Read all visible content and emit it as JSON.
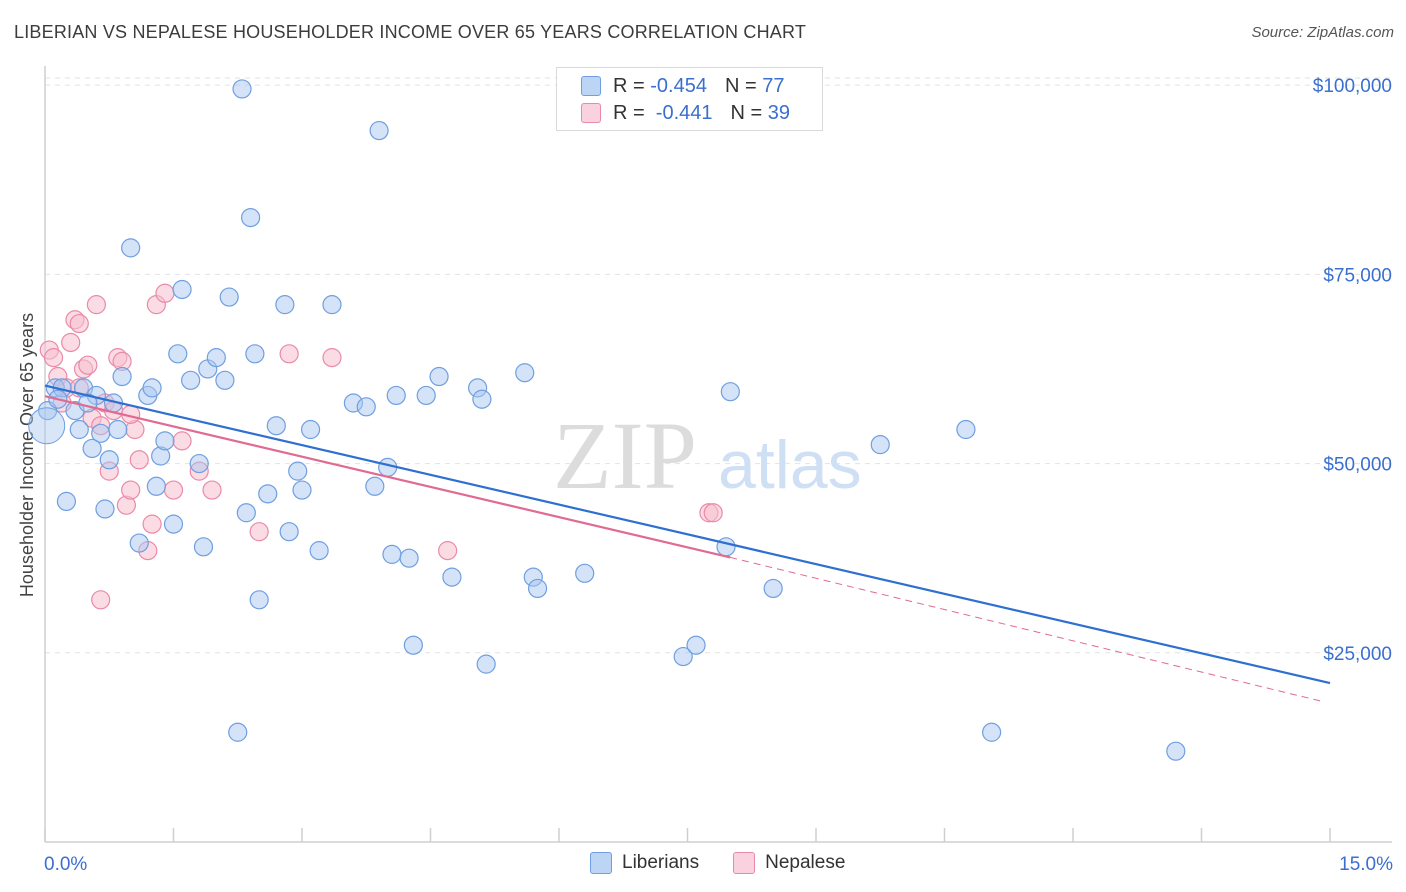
{
  "header": {
    "title": "LIBERIAN VS NEPALESE HOUSEHOLDER INCOME OVER 65 YEARS CORRELATION CHART",
    "source": "Source: ZipAtlas.com"
  },
  "legend": {
    "series1": {
      "r_label": "R =",
      "r_value": "-0.454",
      "n_label": "N =",
      "n_value": "77"
    },
    "series2": {
      "r_label": "R =",
      "r_value": " -0.441",
      "n_label": "N =",
      "n_value": "39"
    }
  },
  "watermark": {
    "zip": "ZIP",
    "atlas": "atlas"
  },
  "colors": {
    "blue_fill": "#a9c8f0",
    "blue_stroke": "#6f9fe0",
    "blue_line": "#2e6fd1",
    "pink_fill": "#f7c0d0",
    "pink_stroke": "#e98aa8",
    "pink_line": "#e06a92",
    "axis_label": "#3a6fd0",
    "grid": "#e2e2e2"
  },
  "chart_data": {
    "type": "scatter",
    "title": "LIBERIAN VS NEPALESE HOUSEHOLDER INCOME OVER 65 YEARS CORRELATION CHART",
    "xlabel": "",
    "ylabel": "Householder Income Over 65 years",
    "xlim": [
      0,
      15
    ],
    "ylim": [
      0,
      102000
    ],
    "x_tick_labels": [
      "0.0%",
      "15.0%"
    ],
    "y_ticks": [
      25000,
      50000,
      75000,
      100000
    ],
    "y_tick_labels": [
      "$25,000",
      "$50,000",
      "$75,000",
      "$100,000"
    ],
    "grid": true,
    "legend_position": "top-center",
    "series": [
      {
        "name": "Liberians",
        "color": "#a9c8f0",
        "r": -0.454,
        "n": 77,
        "trend": {
          "x": [
            0,
            15
          ],
          "y": [
            60300,
            21000
          ]
        },
        "points": [
          [
            0.03,
            57000
          ],
          [
            0.12,
            60000
          ],
          [
            0.2,
            60000
          ],
          [
            0.25,
            45000
          ],
          [
            0.35,
            57000
          ],
          [
            0.4,
            54500
          ],
          [
            0.45,
            60000
          ],
          [
            0.6,
            59000
          ],
          [
            0.65,
            54000
          ],
          [
            0.7,
            44000
          ],
          [
            0.75,
            50500
          ],
          [
            0.8,
            58000
          ],
          [
            0.9,
            61500
          ],
          [
            1.0,
            78500
          ],
          [
            1.1,
            39500
          ],
          [
            1.2,
            59000
          ],
          [
            1.25,
            60000
          ],
          [
            1.3,
            47000
          ],
          [
            1.35,
            51000
          ],
          [
            1.5,
            42000
          ],
          [
            1.55,
            64500
          ],
          [
            1.6,
            73000
          ],
          [
            1.7,
            61000
          ],
          [
            1.8,
            50000
          ],
          [
            1.85,
            39000
          ],
          [
            1.9,
            62500
          ],
          [
            2.0,
            64000
          ],
          [
            2.1,
            61000
          ],
          [
            2.15,
            72000
          ],
          [
            2.25,
            14500
          ],
          [
            2.3,
            99500
          ],
          [
            2.35,
            43500
          ],
          [
            2.4,
            82500
          ],
          [
            2.45,
            64500
          ],
          [
            2.5,
            32000
          ],
          [
            2.6,
            46000
          ],
          [
            2.8,
            71000
          ],
          [
            2.85,
            41000
          ],
          [
            2.95,
            49000
          ],
          [
            3.0,
            46500
          ],
          [
            3.1,
            54500
          ],
          [
            3.2,
            38500
          ],
          [
            3.35,
            71000
          ],
          [
            3.6,
            58000
          ],
          [
            3.75,
            57500
          ],
          [
            3.85,
            47000
          ],
          [
            3.9,
            94000
          ],
          [
            4.0,
            49500
          ],
          [
            4.05,
            38000
          ],
          [
            4.1,
            59000
          ],
          [
            4.25,
            37500
          ],
          [
            4.3,
            26000
          ],
          [
            4.45,
            59000
          ],
          [
            4.6,
            61500
          ],
          [
            4.75,
            35000
          ],
          [
            5.05,
            60000
          ],
          [
            5.1,
            58500
          ],
          [
            5.15,
            23500
          ],
          [
            5.6,
            62000
          ],
          [
            5.7,
            35000
          ],
          [
            5.75,
            33500
          ],
          [
            6.3,
            35500
          ],
          [
            7.45,
            24500
          ],
          [
            7.6,
            26000
          ],
          [
            7.95,
            39000
          ],
          [
            8.0,
            59500
          ],
          [
            8.5,
            33500
          ],
          [
            9.75,
            52500
          ],
          [
            10.75,
            54500
          ],
          [
            11.05,
            14500
          ],
          [
            13.2,
            12000
          ],
          [
            0.5,
            58000
          ],
          [
            0.55,
            52000
          ],
          [
            0.15,
            58500
          ],
          [
            0.85,
            54500
          ],
          [
            1.4,
            53000
          ],
          [
            2.7,
            55000
          ]
        ]
      },
      {
        "name": "Nepalese",
        "color": "#f7c0d0",
        "r": -0.441,
        "n": 39,
        "trend": {
          "x": [
            0,
            8.0
          ],
          "y": [
            58900,
            37600
          ]
        },
        "trend_dashed": {
          "x": [
            8.0,
            14.9
          ],
          "y": [
            37600,
            18600
          ]
        },
        "points": [
          [
            0.05,
            65000
          ],
          [
            0.1,
            64000
          ],
          [
            0.15,
            61500
          ],
          [
            0.2,
            58000
          ],
          [
            0.25,
            60000
          ],
          [
            0.3,
            66000
          ],
          [
            0.35,
            69000
          ],
          [
            0.4,
            68500
          ],
          [
            0.45,
            62500
          ],
          [
            0.5,
            63000
          ],
          [
            0.55,
            56000
          ],
          [
            0.6,
            71000
          ],
          [
            0.65,
            55000
          ],
          [
            0.7,
            58000
          ],
          [
            0.75,
            49000
          ],
          [
            0.8,
            57000
          ],
          [
            0.85,
            64000
          ],
          [
            0.9,
            63500
          ],
          [
            0.95,
            44500
          ],
          [
            1.0,
            46500
          ],
          [
            1.05,
            54500
          ],
          [
            1.1,
            50500
          ],
          [
            1.2,
            38500
          ],
          [
            1.25,
            42000
          ],
          [
            1.3,
            71000
          ],
          [
            1.4,
            72500
          ],
          [
            1.5,
            46500
          ],
          [
            1.6,
            53000
          ],
          [
            1.8,
            49000
          ],
          [
            1.95,
            46500
          ],
          [
            2.5,
            41000
          ],
          [
            2.85,
            64500
          ],
          [
            3.35,
            64000
          ],
          [
            4.7,
            38500
          ],
          [
            7.75,
            43500
          ],
          [
            7.8,
            43500
          ],
          [
            0.4,
            60000
          ],
          [
            0.65,
            32000
          ],
          [
            1.0,
            56500
          ]
        ]
      }
    ]
  }
}
